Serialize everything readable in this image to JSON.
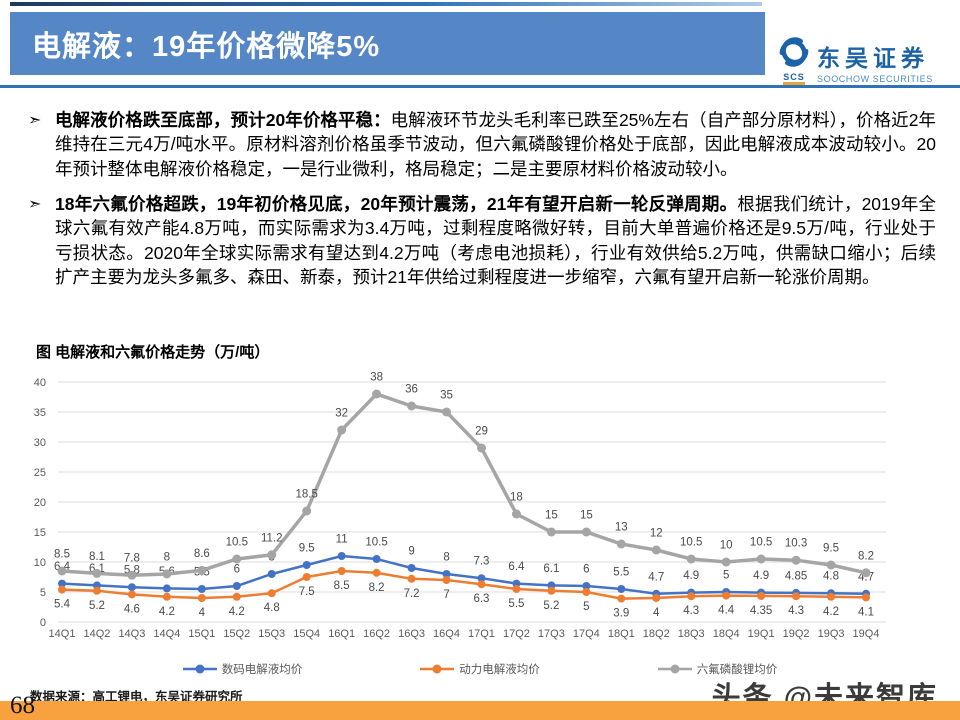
{
  "header": {
    "title": "电解液：19年价格微降5%",
    "logo": {
      "icon": "soochow-swirl-icon",
      "abbr": "SCS",
      "name_cn": "东吴证券",
      "name_en": "SOOCHOW SECURITIES"
    }
  },
  "bullets": [
    {
      "bold": "电解液价格跌至底部，预计20年价格平稳：",
      "text": "电解液环节龙头毛利率已跌至25%左右（自产部分原材料），价格近2年维持在三元4万/吨水平。原材料溶剂价格虽季节波动，但六氟磷酸锂价格处于底部，因此电解液成本波动较小。20年预计整体电解液价格稳定，一是行业微利，格局稳定；二是主要原材料价格波动较小。"
    },
    {
      "bold": "18年六氟价格超跌，19年初价格见底，20年预计震荡，21年有望开启新一轮反弹周期。",
      "text": "根据我们统计，2019年全球六氟有效产能4.8万吨，而实际需求为3.4万吨，过剩程度略微好转，目前大单普遍价格还是9.5万/吨，行业处于亏损状态。2020年全球实际需求有望达到4.2万吨（考虑电池损耗），行业有效供给5.2万吨，供需缺口缩小；后续扩产主要为龙头多氟多、森田、新泰，预计21年供给过剩程度进一步缩窄，六氟有望开启新一轮涨价周期。"
    }
  ],
  "chart": {
    "title": "图  电解液和六氟价格走势（万/吨）"
  },
  "chart_data": {
    "type": "line",
    "title": "图 电解液和六氟价格走势（万/吨）",
    "categories": [
      "14Q1",
      "14Q2",
      "14Q3",
      "14Q4",
      "15Q1",
      "15Q2",
      "15Q3",
      "15Q4",
      "16Q1",
      "16Q2",
      "16Q3",
      "16Q4",
      "17Q1",
      "17Q2",
      "17Q3",
      "17Q4",
      "18Q1",
      "18Q2",
      "18Q3",
      "18Q4",
      "19Q1",
      "19Q2",
      "19Q3",
      "19Q4"
    ],
    "series": [
      {
        "name": "数码电解液均价",
        "color": "#4472C4",
        "values": [
          6.4,
          6.1,
          5.8,
          5.6,
          5.5,
          6,
          8,
          9.5,
          11,
          10.5,
          9,
          8,
          7.3,
          6.4,
          6.1,
          6,
          5.5,
          4.7,
          4.9,
          5,
          4.9,
          4.85,
          4.8,
          4.7
        ]
      },
      {
        "name": "动力电解液均价",
        "color": "#ED7D31",
        "values": [
          5.4,
          5.2,
          4.6,
          4.2,
          4,
          4.2,
          4.8,
          7.5,
          8.5,
          8.2,
          7.2,
          7,
          6.3,
          5.5,
          5.2,
          5,
          3.9,
          4,
          4.3,
          4.4,
          4.35,
          4.3,
          4.2,
          4.1
        ]
      },
      {
        "name": "六氟磷酸锂均价",
        "color": "#A5A5A5",
        "values": [
          8.5,
          8.1,
          7.8,
          8,
          8.6,
          10.5,
          11.2,
          18.5,
          32,
          38,
          36,
          35,
          29,
          18,
          15,
          15,
          13,
          12,
          10.5,
          10,
          10.5,
          10.3,
          9.5,
          8.2
        ]
      }
    ],
    "ylim": [
      0,
      40
    ],
    "ytick_step": 5,
    "grid": true,
    "legend_position": "bottom",
    "data_labels": true,
    "xlabel": "",
    "ylabel": ""
  },
  "footer": {
    "source": "数据来源：高工锂电，东吴证券研究所",
    "page_number": "68",
    "watermark": "头条 @未来智库"
  },
  "colors": {
    "banner_blue": "#5587C6",
    "rule_blue": "#2E74B5",
    "top_accent_dark": "#1F3864",
    "logo_blue": "#1B62A7",
    "logo_underline_orange": "#E8A33D",
    "bottom_bar_orange": "#F7A13F",
    "gridline": "#DCDCDC",
    "tick_text": "#595959",
    "data_label_text": "#4a4a4a"
  }
}
